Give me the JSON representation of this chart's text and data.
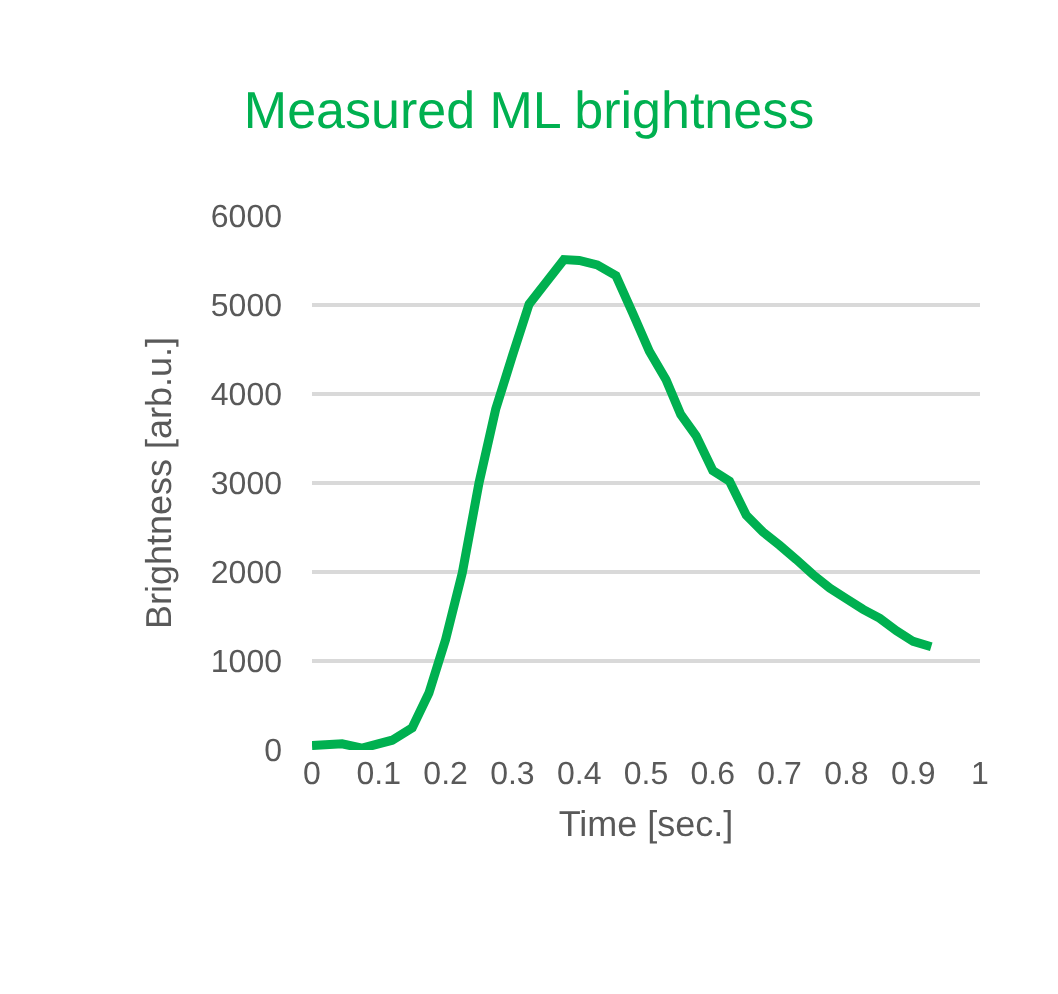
{
  "chart_data": {
    "type": "line",
    "title": "Measured ML brightness",
    "xlabel": "Time [sec.]",
    "ylabel": "Brightness [arb.u.]",
    "x": [
      0,
      0.045,
      0.075,
      0.12,
      0.15,
      0.175,
      0.2,
      0.225,
      0.25,
      0.275,
      0.3,
      0.325,
      0.35,
      0.377,
      0.4,
      0.427,
      0.455,
      0.48,
      0.505,
      0.53,
      0.552,
      0.575,
      0.6,
      0.625,
      0.65,
      0.675,
      0.7,
      0.725,
      0.75,
      0.775,
      0.8,
      0.825,
      0.85,
      0.875,
      0.9,
      0.927
    ],
    "series": [
      {
        "color": "#00b050",
        "values": [
          50,
          70,
          20,
          110,
          250,
          640,
          1240,
          1990,
          3000,
          3830,
          4430,
          5010,
          5250,
          5510,
          5500,
          5450,
          5330,
          4910,
          4480,
          4160,
          3770,
          3530,
          3140,
          3020,
          2640,
          2450,
          2300,
          2140,
          1970,
          1820,
          1700,
          1580,
          1480,
          1340,
          1220,
          1160
        ]
      }
    ],
    "xlim": [
      0,
      1
    ],
    "xticks": [
      0,
      0.1,
      0.2,
      0.3,
      0.4,
      0.5,
      0.6,
      0.7,
      0.8,
      0.9,
      1
    ],
    "ylim": [
      0,
      6000
    ],
    "yticks": [
      0,
      1000,
      2000,
      3000,
      4000,
      5000,
      6000
    ],
    "grid": "y",
    "legend": false,
    "marker": "none",
    "line_style": "solid"
  }
}
